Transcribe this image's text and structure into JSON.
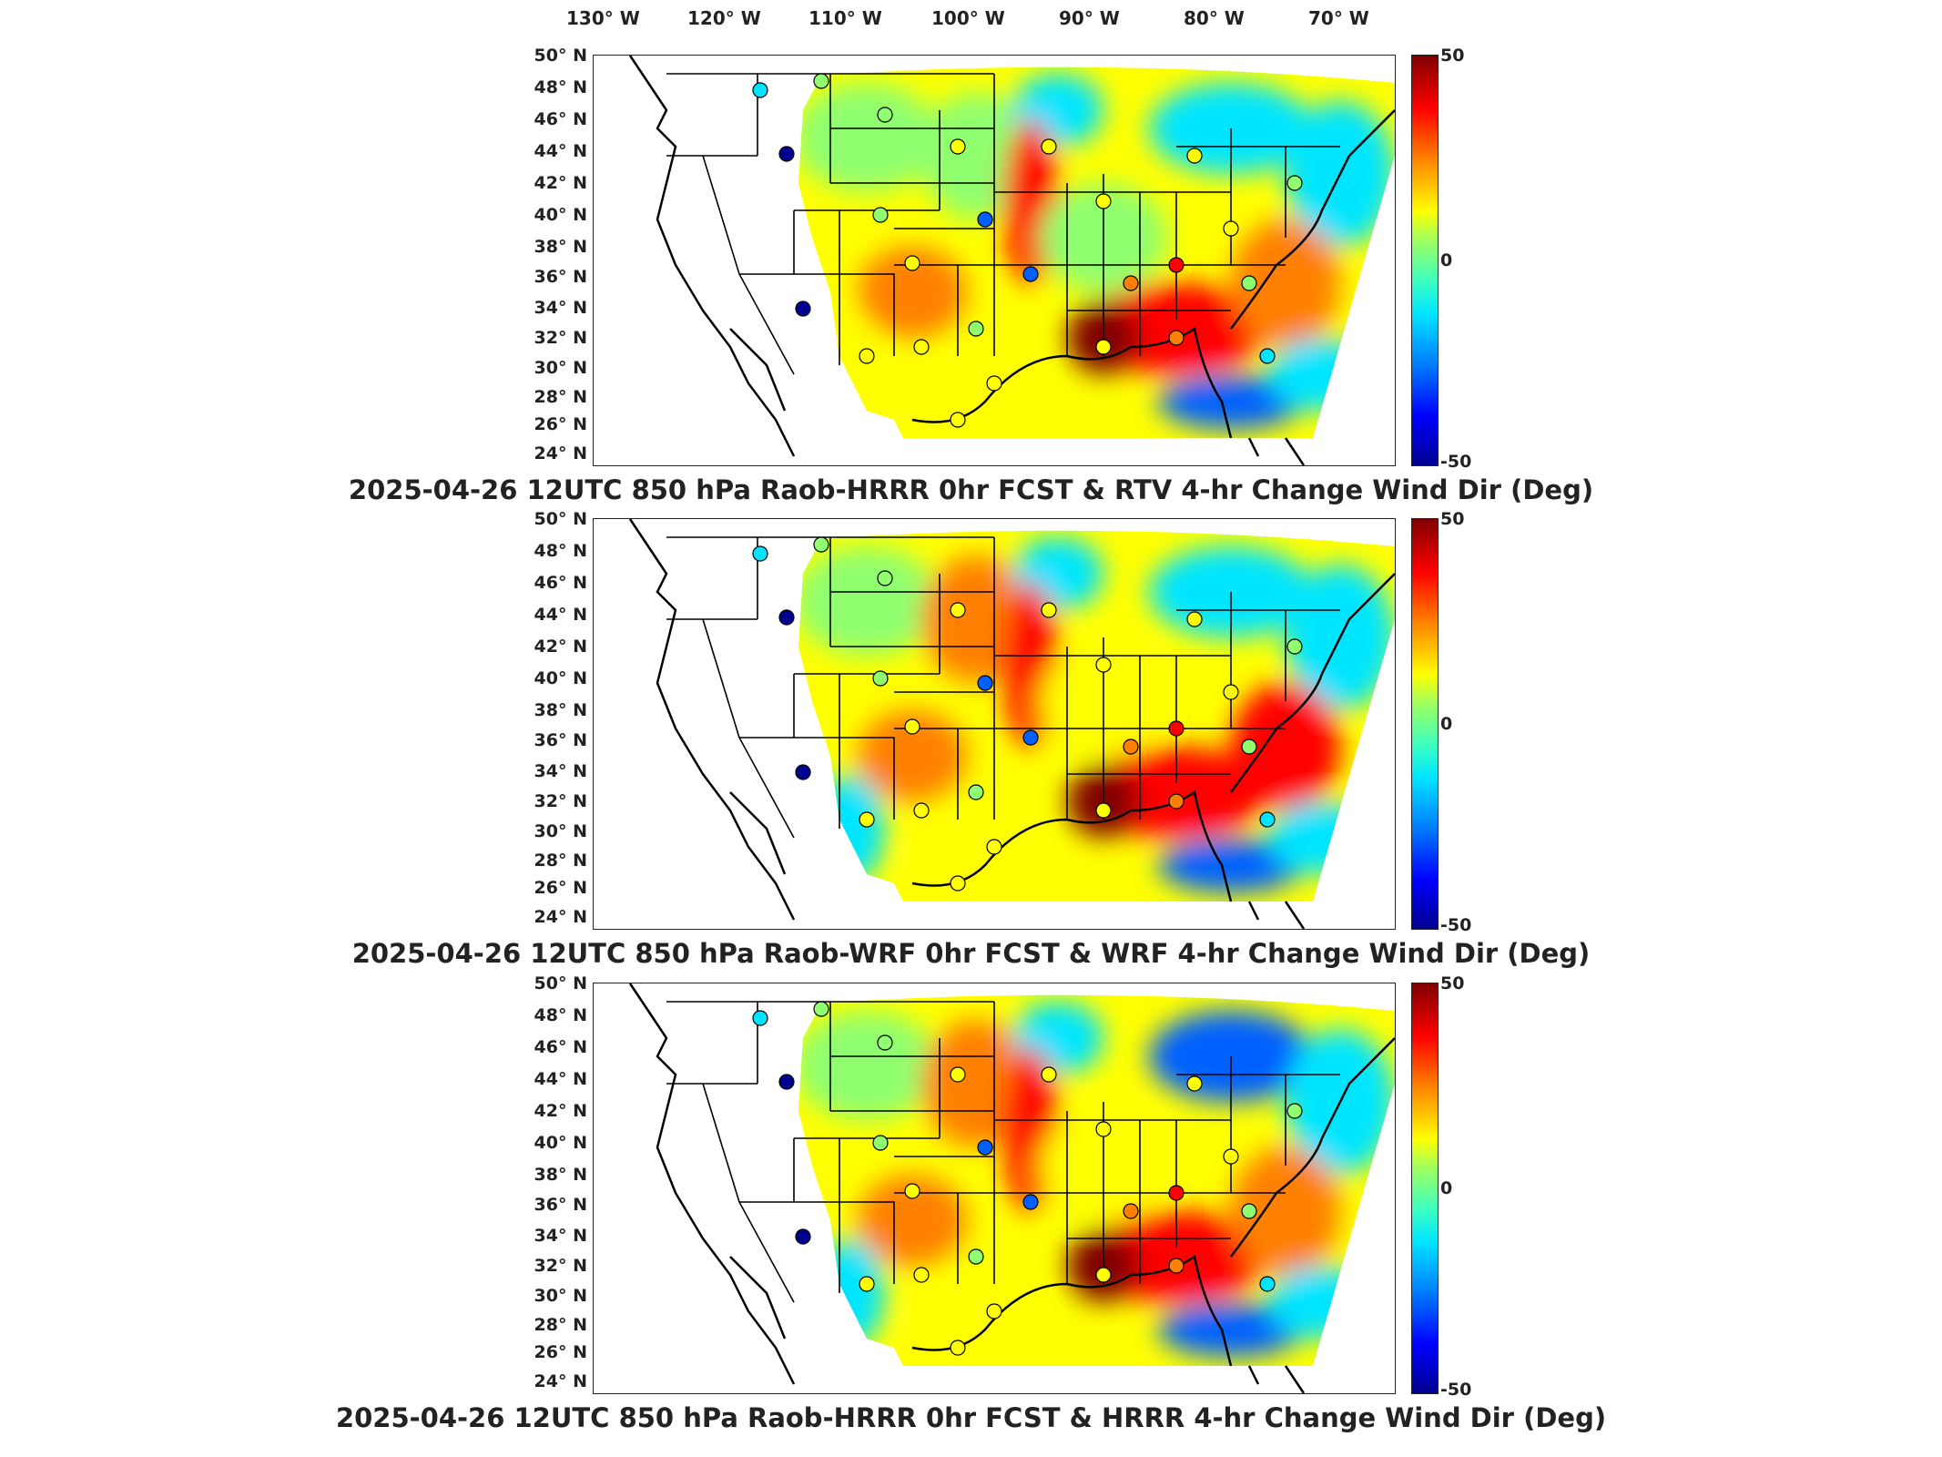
{
  "longitude_labels": [
    "130° W",
    "120° W",
    "110° W",
    "100° W",
    "90° W",
    "80° W",
    "70° W"
  ],
  "latitude_labels": [
    "50° N",
    "48° N",
    "46° N",
    "44° N",
    "42° N",
    "40° N",
    "38° N",
    "36° N",
    "34° N",
    "32° N",
    "30° N",
    "28° N",
    "26° N",
    "24° N"
  ],
  "colorbar": {
    "max": "50",
    "mid": "0",
    "min": "-50"
  },
  "panels": [
    {
      "caption": "2025-04-26 12UTC 850 hPa Raob-HRRR 0hr FCST & RTV 4-hr Change Wind Dir (Deg)"
    },
    {
      "caption": "2025-04-26 12UTC 850 hPa Raob-WRF 0hr FCST & WRF 4-hr Change Wind Dir (Deg)"
    },
    {
      "caption": "2025-04-26 12UTC 850 hPa Raob-HRRR 0hr FCST & HRRR 4-hr Change Wind Dir (Deg)"
    }
  ],
  "colors": {
    "dark_red": "#800000",
    "red": "#ff0000",
    "orange": "#ff8000",
    "yellow": "#ffff00",
    "green": "#8fff6f",
    "cyan": "#00e5ff",
    "blue": "#0060ff",
    "navy": "#00008f"
  }
}
